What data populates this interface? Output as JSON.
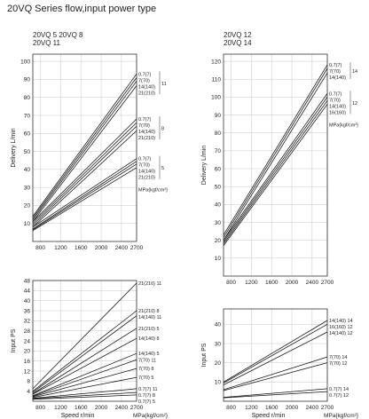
{
  "page": {
    "title": "20VQ Series flow,input power type"
  },
  "chart_data": [
    {
      "type": "line",
      "id": "left-delivery",
      "models": [
        "20VQ 5  20VQ 8",
        "20VQ 11"
      ],
      "ylabel": "Delivery L/min",
      "xticks": [
        800,
        1200,
        1600,
        2000,
        2400,
        2700
      ],
      "yticks": [
        10,
        20,
        30,
        40,
        50,
        60,
        70,
        80,
        90,
        100
      ],
      "xlim": [
        650,
        2700
      ],
      "ylim": [
        0,
        104
      ],
      "pressure_unit": "MPa{kgf/cm²}",
      "groups": [
        {
          "model": "11",
          "lines": [
            {
              "label": "0.7(7)",
              "x": [
                650,
                2700
              ],
              "y": [
                14,
                93
              ]
            },
            {
              "label": "7(70)",
              "x": [
                650,
                2700
              ],
              "y": [
                13,
                91
              ]
            },
            {
              "label": "14(140)",
              "x": [
                650,
                2700
              ],
              "y": [
                12,
                89
              ]
            },
            {
              "label": "21(210)",
              "x": [
                650,
                2700
              ],
              "y": [
                11,
                86.5
              ]
            }
          ]
        },
        {
          "model": "8",
          "lines": [
            {
              "label": "0.7(7)",
              "x": [
                650,
                2700
              ],
              "y": [
                11,
                68
              ]
            },
            {
              "label": "7(70)",
              "x": [
                650,
                2700
              ],
              "y": [
                10,
                66
              ]
            },
            {
              "label": "14(140)",
              "x": [
                650,
                2700
              ],
              "y": [
                9,
                64
              ]
            },
            {
              "label": "21(210)",
              "x": [
                650,
                2700
              ],
              "y": [
                8,
                61.5
              ]
            }
          ]
        },
        {
          "model": "5",
          "lines": [
            {
              "label": "0.7(7)",
              "x": [
                650,
                2700
              ],
              "y": [
                8,
                46
              ]
            },
            {
              "label": "7(70)",
              "x": [
                650,
                2700
              ],
              "y": [
                7,
                44.5
              ]
            },
            {
              "label": "14(140)",
              "x": [
                650,
                2700
              ],
              "y": [
                6.5,
                43
              ]
            },
            {
              "label": "21(210)",
              "x": [
                650,
                2700
              ],
              "y": [
                6,
                41
              ]
            }
          ]
        }
      ]
    },
    {
      "type": "line",
      "id": "left-power",
      "ylabel": "Input PS",
      "xlabel": "Speed r/min",
      "xticks": [
        800,
        1200,
        1600,
        2000,
        2400,
        2700
      ],
      "yticks": [
        4,
        8,
        12,
        16,
        20,
        24,
        28,
        32,
        36,
        40,
        44,
        48
      ],
      "xlim": [
        650,
        2700
      ],
      "ylim": [
        0,
        48
      ],
      "pressure_unit": "MPa{kgf/cm²}",
      "lines": [
        {
          "label": "21(210) 11",
          "x": [
            650,
            2700
          ],
          "y": [
            5,
            47
          ]
        },
        {
          "label": "21(210) 8",
          "x": [
            650,
            2700
          ],
          "y": [
            4,
            36
          ]
        },
        {
          "label": "14(140) 11",
          "x": [
            650,
            2700
          ],
          "y": [
            3.5,
            34
          ]
        },
        {
          "label": "21(210) 5",
          "x": [
            650,
            2700
          ],
          "y": [
            3,
            29
          ]
        },
        {
          "label": "14(140) 8",
          "x": [
            650,
            2700
          ],
          "y": [
            2.8,
            25
          ]
        },
        {
          "label": "14(140) 5",
          "x": [
            650,
            2700
          ],
          "y": [
            2.2,
            19
          ]
        },
        {
          "label": "7(70) 11",
          "x": [
            650,
            2700
          ],
          "y": [
            2,
            16.5
          ]
        },
        {
          "label": "7(70) 8",
          "x": [
            650,
            2700
          ],
          "y": [
            1.8,
            13
          ]
        },
        {
          "label": "7(70) 5",
          "x": [
            650,
            2700
          ],
          "y": [
            1.5,
            9.5
          ]
        },
        {
          "label": "0.7(7) 11",
          "x": [
            650,
            2700
          ],
          "y": [
            1.2,
            5
          ]
        },
        {
          "label": "0.7(7) 8",
          "x": [
            650,
            2700
          ],
          "y": [
            1,
            3.5
          ]
        },
        {
          "label": "0.7(7) 5",
          "x": [
            650,
            2700
          ],
          "y": [
            0.8,
            2.5
          ]
        }
      ]
    },
    {
      "type": "line",
      "id": "right-delivery",
      "models": [
        "20VQ 12",
        "20VQ 14"
      ],
      "ylabel": "Delivery L/min",
      "xticks": [
        800,
        1200,
        1600,
        2000,
        2400,
        2700
      ],
      "yticks": [
        10,
        20,
        30,
        40,
        50,
        60,
        70,
        80,
        90,
        100,
        110,
        120
      ],
      "xlim": [
        650,
        2700
      ],
      "ylim": [
        0,
        124
      ],
      "pressure_unit": "MPa{kgf/cm²}",
      "groups": [
        {
          "model": "14",
          "lines": [
            {
              "label": "0.7(7)",
              "x": [
                650,
                2700
              ],
              "y": [
                23,
                118
              ]
            },
            {
              "label": "7(70)",
              "x": [
                650,
                2700
              ],
              "y": [
                21.5,
                116
              ]
            },
            {
              "label": "14(140)",
              "x": [
                650,
                2700
              ],
              "y": [
                20,
                113.5
              ]
            }
          ]
        },
        {
          "model": "12",
          "lines": [
            {
              "label": "0.7(7)",
              "x": [
                650,
                2700
              ],
              "y": [
                20,
                102
              ]
            },
            {
              "label": "7(70)",
              "x": [
                650,
                2700
              ],
              "y": [
                19,
                100
              ]
            },
            {
              "label": "14(140)",
              "x": [
                650,
                2700
              ],
              "y": [
                18,
                98
              ]
            },
            {
              "label": "16(160)",
              "x": [
                650,
                2700
              ],
              "y": [
                17,
                96
              ]
            }
          ]
        }
      ]
    },
    {
      "type": "line",
      "id": "right-power",
      "ylabel": "Input PS",
      "xlabel": "Speed r/min",
      "xticks": [
        800,
        1200,
        1600,
        2000,
        2400,
        2700
      ],
      "yticks": [
        10,
        20,
        30,
        40
      ],
      "xlim": [
        650,
        2700
      ],
      "ylim": [
        0,
        48
      ],
      "pressure_unit": "MPa{kgf/cm²}",
      "lines": [
        {
          "label": "14(140) 14",
          "x": [
            650,
            2700
          ],
          "y": [
            10,
            42
          ]
        },
        {
          "label": "16(160) 12",
          "x": [
            650,
            2700
          ],
          "y": [
            9.5,
            40
          ]
        },
        {
          "label": "14(140) 12",
          "x": [
            650,
            2700
          ],
          "y": [
            8.5,
            36
          ]
        },
        {
          "label": "7(70) 14",
          "x": [
            650,
            2700
          ],
          "y": [
            6,
            23
          ]
        },
        {
          "label": "7(70) 12",
          "x": [
            650,
            2700
          ],
          "y": [
            5.5,
            20
          ]
        },
        {
          "label": "0.7(7) 14",
          "x": [
            650,
            2700
          ],
          "y": [
            2,
            6.5
          ]
        },
        {
          "label": "0.7(7) 12",
          "x": [
            650,
            2700
          ],
          "y": [
            1.8,
            5
          ]
        }
      ]
    }
  ]
}
